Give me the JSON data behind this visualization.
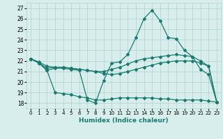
{
  "xlabel": "Humidex (Indice chaleur)",
  "xlim": [
    -0.5,
    23.5
  ],
  "ylim": [
    17.5,
    27.5
  ],
  "yticks": [
    18,
    19,
    20,
    21,
    22,
    23,
    24,
    25,
    26,
    27
  ],
  "xticks": [
    0,
    1,
    2,
    3,
    4,
    5,
    6,
    7,
    8,
    9,
    10,
    11,
    12,
    13,
    14,
    15,
    16,
    17,
    18,
    19,
    20,
    21,
    22,
    23
  ],
  "line_color": "#1a7a6e",
  "bg_color": "#d8eeed",
  "grid_color": "#b0d0cc",
  "series": [
    {
      "x": [
        0,
        1,
        2,
        3,
        4,
        5,
        6,
        7,
        8,
        9,
        10,
        11,
        12,
        13,
        14,
        15,
        16,
        17,
        18,
        19,
        20,
        21,
        22,
        23
      ],
      "y": [
        22.2,
        21.8,
        21.1,
        21.3,
        21.3,
        21.2,
        21.1,
        18.3,
        18.0,
        20.1,
        21.8,
        21.9,
        22.6,
        24.2,
        26.0,
        26.8,
        25.8,
        24.2,
        24.1,
        23.0,
        22.4,
        21.2,
        20.7,
        18.1
      ]
    },
    {
      "x": [
        0,
        1,
        2,
        3,
        4,
        5,
        6,
        7,
        8,
        9,
        10,
        11,
        12,
        13,
        14,
        15,
        16,
        17,
        18,
        19,
        20,
        21,
        22,
        23
      ],
      "y": [
        22.2,
        21.8,
        21.3,
        21.4,
        21.4,
        21.3,
        21.2,
        21.1,
        21.0,
        21.0,
        21.2,
        21.4,
        21.7,
        22.0,
        22.2,
        22.3,
        22.4,
        22.5,
        22.6,
        22.5,
        22.4,
        22.0,
        21.5,
        18.1
      ]
    },
    {
      "x": [
        0,
        1,
        2,
        3,
        4,
        5,
        6,
        7,
        8,
        9,
        10,
        11,
        12,
        13,
        14,
        15,
        16,
        17,
        18,
        19,
        20,
        21,
        22,
        23
      ],
      "y": [
        22.2,
        21.9,
        21.5,
        21.4,
        21.4,
        21.3,
        21.2,
        21.1,
        21.0,
        20.8,
        20.7,
        20.8,
        21.0,
        21.2,
        21.4,
        21.6,
        21.8,
        21.9,
        22.0,
        22.0,
        22.0,
        21.8,
        21.5,
        18.1
      ]
    },
    {
      "x": [
        0,
        1,
        2,
        3,
        4,
        5,
        6,
        7,
        8,
        9,
        10,
        11,
        12,
        13,
        14,
        15,
        16,
        17,
        18,
        19,
        20,
        21,
        22,
        23
      ],
      "y": [
        22.2,
        21.8,
        21.1,
        19.0,
        18.9,
        18.8,
        18.6,
        18.5,
        18.3,
        18.3,
        18.4,
        18.5,
        18.5,
        18.5,
        18.5,
        18.5,
        18.4,
        18.4,
        18.3,
        18.3,
        18.3,
        18.3,
        18.2,
        18.1
      ]
    }
  ]
}
